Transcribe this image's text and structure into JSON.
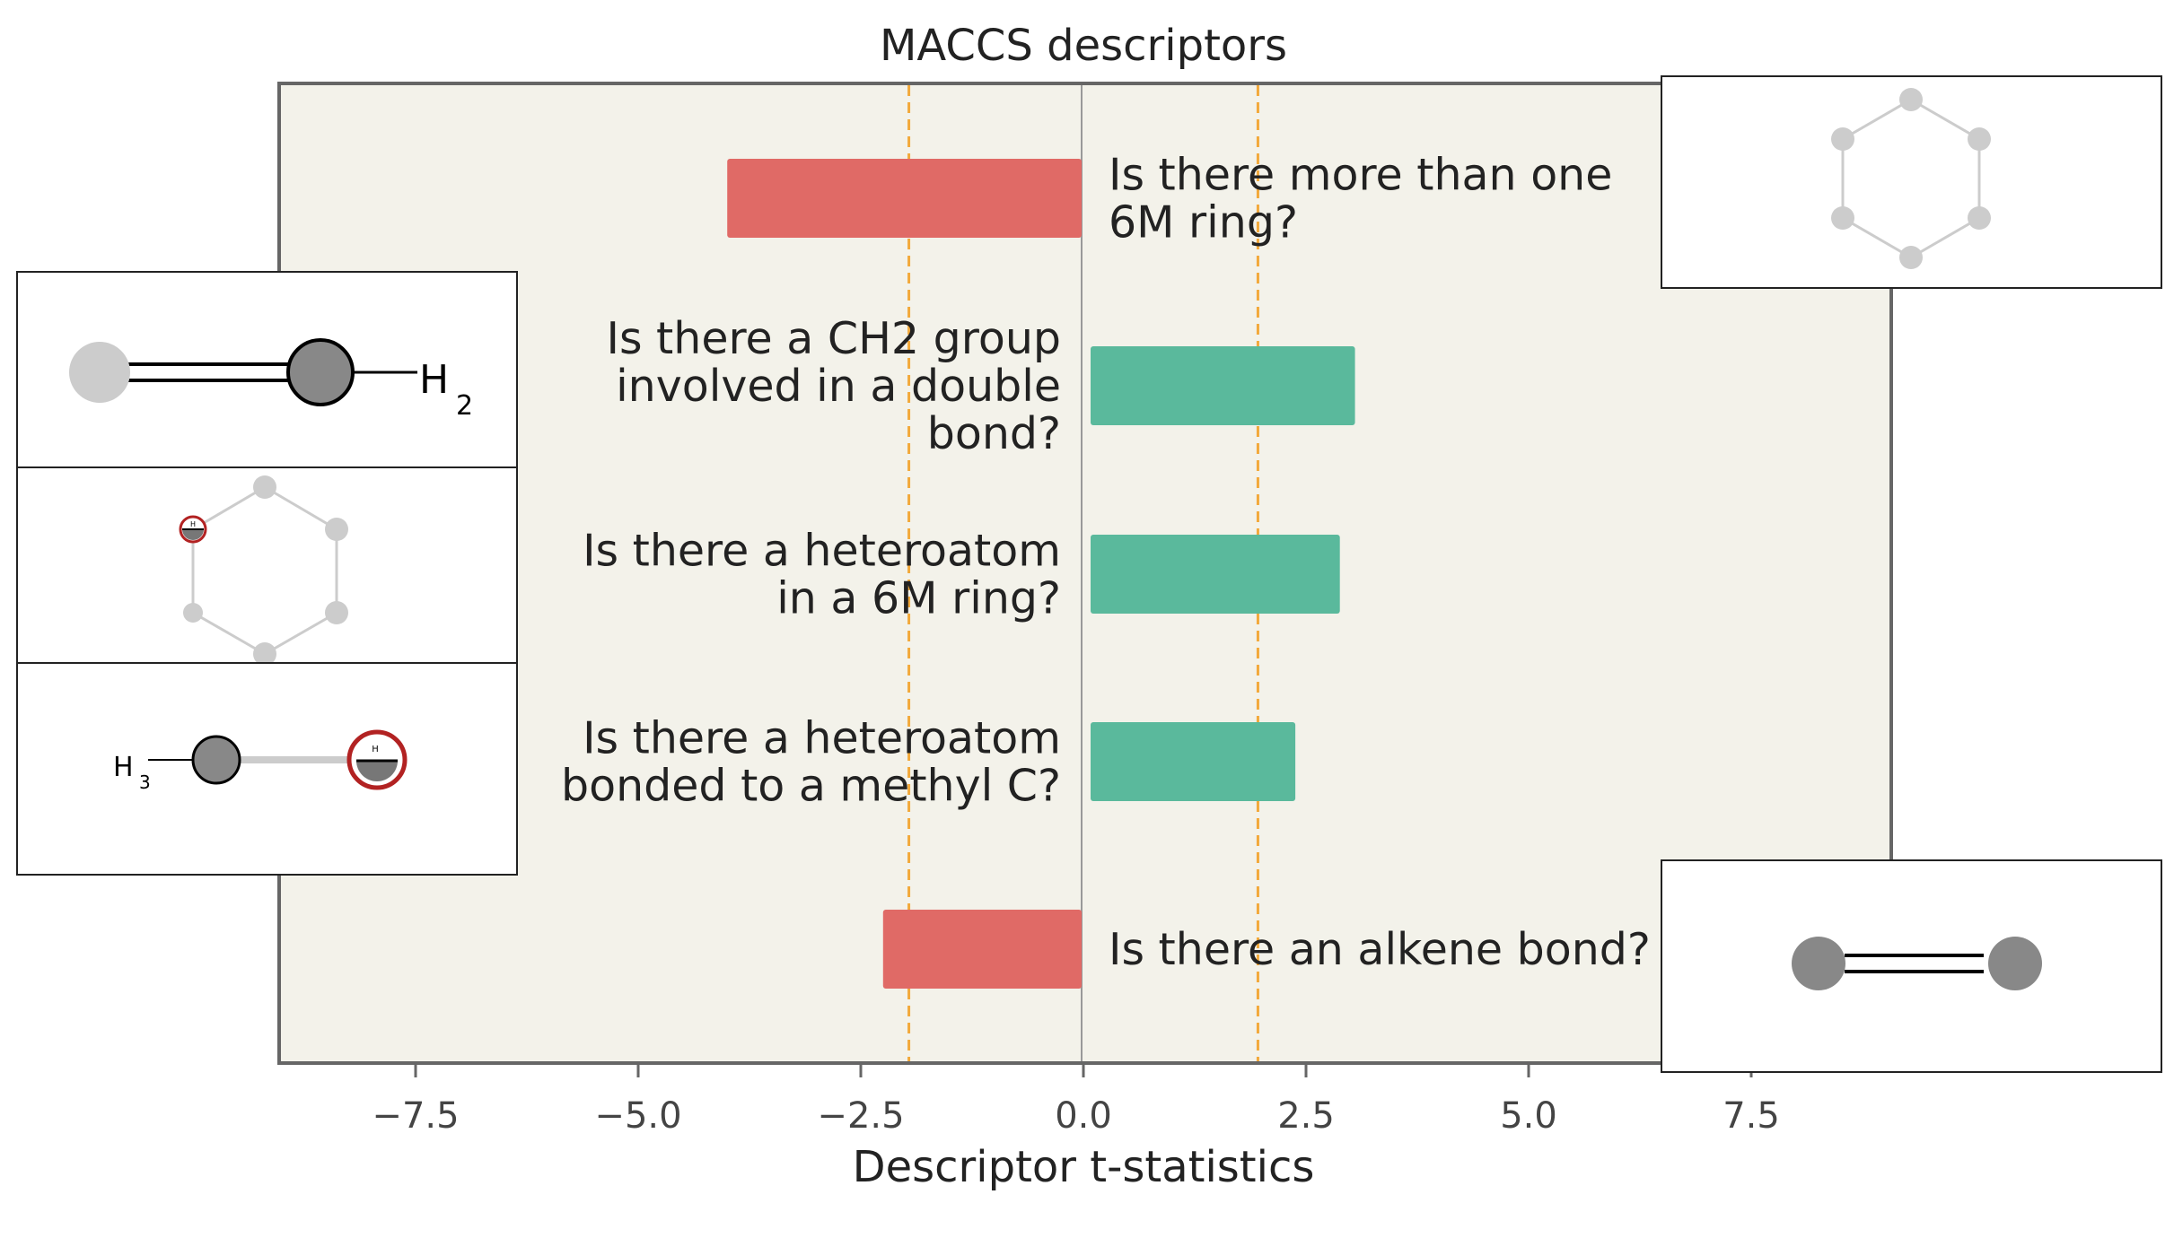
{
  "chart_data": {
    "type": "bar",
    "orientation": "horizontal",
    "title": "MACCS descriptors",
    "xlabel": "Descriptor t-statistics",
    "ylabel": "",
    "xlim": [
      -9.3,
      9.7
    ],
    "xticks": [
      -7.5,
      -5.0,
      -2.5,
      0.0,
      2.5,
      5.0,
      7.5
    ],
    "xtick_labels": [
      "−7.5",
      "−5.0",
      "−2.5",
      "0.0",
      "2.5",
      "5.0",
      "7.5"
    ],
    "significance_lines": [
      -1.96,
      1.96
    ],
    "categories": [
      "Is there more than one 6M ring?",
      "Is there a CH2 group involved in a double bond?",
      "Is there a heteroatom in a 6M ring?",
      "Is there a heteroatom bonded to a methyl C?",
      "Is there an alkene bond?"
    ],
    "values": [
      -4.0,
      3.05,
      2.88,
      2.38,
      -2.25
    ],
    "grid": false,
    "legend": "none"
  },
  "colors": {
    "positive": "#5ab99c",
    "negative": "#e06a66",
    "plot_background": "#f3f2ea",
    "threshold_line": "#f2a93b",
    "frame": "#666666"
  },
  "molecule_insets": [
    {
      "name": "two-six-membered-rings",
      "labels": []
    },
    {
      "name": "ch2-double-bond",
      "labels": [
        "H",
        "2"
      ]
    },
    {
      "name": "heteroatom-in-ring",
      "labels": [
        "H"
      ]
    },
    {
      "name": "heteroatom-methyl",
      "labels": [
        "H",
        "3",
        "H"
      ]
    },
    {
      "name": "alkene-bond",
      "labels": []
    }
  ]
}
